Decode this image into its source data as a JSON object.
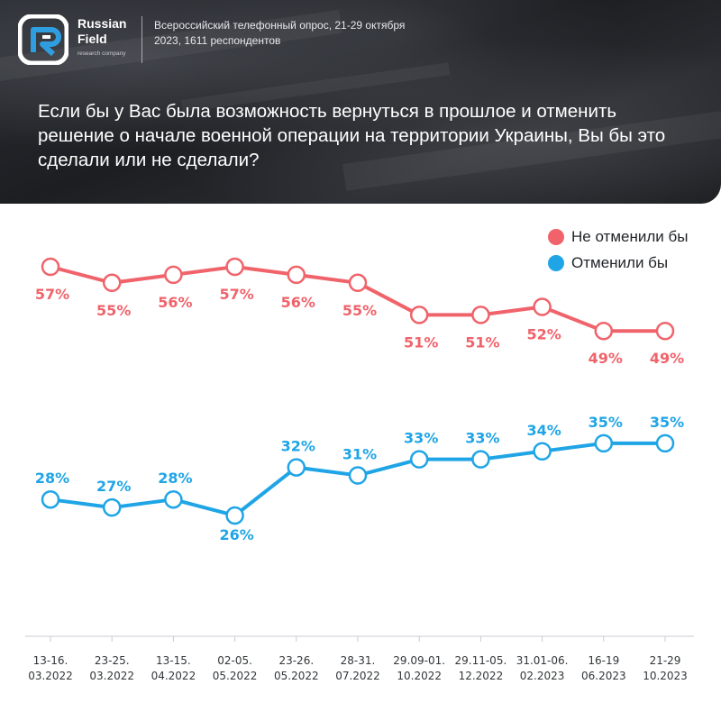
{
  "brand": {
    "name_line1": "Russian",
    "name_line2": "Field",
    "subtitle": "research company"
  },
  "survey_info": "Всероссийский телефонный опрос, 21-29 октября 2023, 1611 респондентов",
  "colors": {
    "red": "#f0636b",
    "blue": "#1fa5e6",
    "logo_accent": "#2f9ee0"
  },
  "chart_data": {
    "type": "line",
    "title": "Если бы у Вас была возможность вернуться в прошлое и отменить решение о начале военной операции на территории Украины, Вы бы это сделали или не сделали?",
    "categories": [
      [
        "13-16.",
        "03.2022"
      ],
      [
        "23-25.",
        "03.2022"
      ],
      [
        "13-15.",
        "04.2022"
      ],
      [
        "02-05.",
        "05.2022"
      ],
      [
        "23-26.",
        "05.2022"
      ],
      [
        "28-31.",
        "07.2022"
      ],
      [
        "29.09-01.",
        "10.2022"
      ],
      [
        "29.11-05.",
        "12.2022"
      ],
      [
        "31.01-06.",
        "02.2023"
      ],
      [
        "16-19",
        "06.2023"
      ],
      [
        "21-29",
        "10.2023"
      ]
    ],
    "series": [
      {
        "name": "Не отменили бы",
        "color": "#f0636b",
        "values": [
          57,
          55,
          56,
          57,
          56,
          55,
          51,
          51,
          52,
          49,
          49
        ],
        "labels": [
          "57%",
          "55%",
          "56%",
          "57%",
          "56%",
          "55%",
          "51%",
          "51%",
          "52%",
          "49%",
          "49%"
        ]
      },
      {
        "name": "Отменили бы",
        "color": "#1fa5e6",
        "values": [
          28,
          27,
          28,
          26,
          32,
          31,
          33,
          33,
          34,
          35,
          35
        ],
        "labels": [
          "28%",
          "27%",
          "28%",
          "26%",
          "32%",
          "31%",
          "33%",
          "33%",
          "34%",
          "35%",
          "35%"
        ]
      }
    ],
    "legend_position": "top-right",
    "grid": false
  }
}
